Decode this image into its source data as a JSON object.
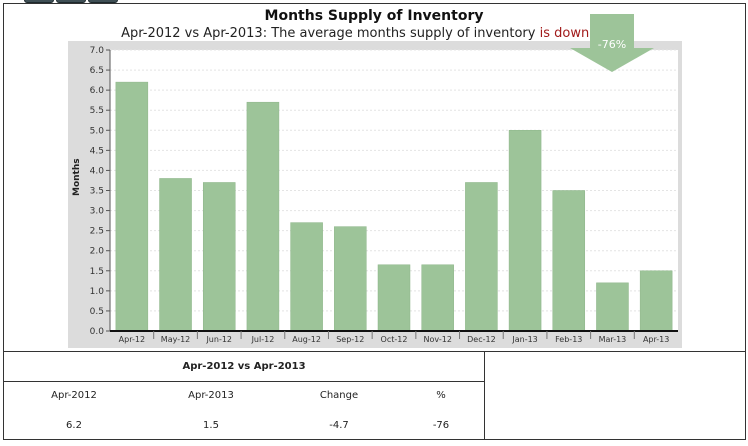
{
  "chart_data": {
    "type": "bar",
    "title": "Months Supply of Inventory",
    "subtitle_prefix": "Apr-2012 vs Apr-2013: The average months supply of inventory",
    "subtitle_highlight": "is down -76%",
    "ylabel": "Months",
    "ylim": [
      0,
      7.0
    ],
    "yticks": [
      "0.0",
      "0.5",
      "1.0",
      "1.5",
      "2.0",
      "2.5",
      "3.0",
      "3.5",
      "4.0",
      "4.5",
      "5.0",
      "5.5",
      "6.0",
      "6.5",
      "7.0"
    ],
    "categories": [
      "Apr-12",
      "May-12",
      "Jun-12",
      "Jul-12",
      "Aug-12",
      "Sep-12",
      "Oct-12",
      "Nov-12",
      "Dec-12",
      "Jan-13",
      "Feb-13",
      "Mar-13",
      "Apr-13"
    ],
    "values": [
      6.2,
      3.8,
      3.7,
      5.7,
      2.7,
      2.6,
      1.65,
      1.65,
      3.7,
      5.0,
      3.5,
      1.2,
      1.5
    ],
    "bar_color": "#9dc499",
    "grid": true
  },
  "comparison": {
    "header": "Apr-2012 vs Apr-2013",
    "labels": [
      "Apr-2012",
      "Apr-2013",
      "Change",
      "%"
    ],
    "values": [
      "6.2",
      "1.5",
      "-4.7",
      "-76"
    ],
    "arrow_text": "-76%",
    "arrow_color": "#9dc499"
  }
}
